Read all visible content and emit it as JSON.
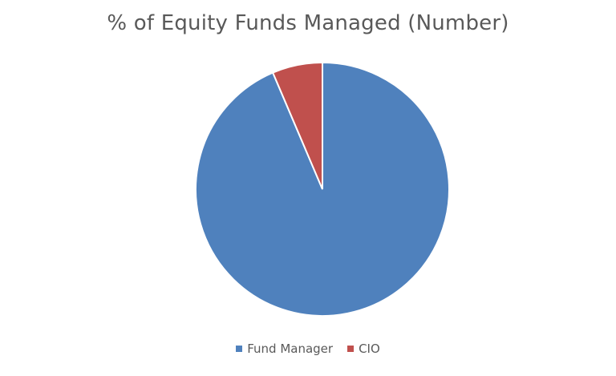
{
  "chart_data": {
    "type": "pie",
    "title": "% of Equity Funds Managed (Number)",
    "categories": [
      "Fund Manager",
      "CIO"
    ],
    "values": [
      93.6,
      6.4
    ],
    "colors": [
      "#4f81bd",
      "#c0504d"
    ],
    "legend_position": "bottom",
    "start_angle_deg": 0,
    "direction": "clockwise"
  }
}
